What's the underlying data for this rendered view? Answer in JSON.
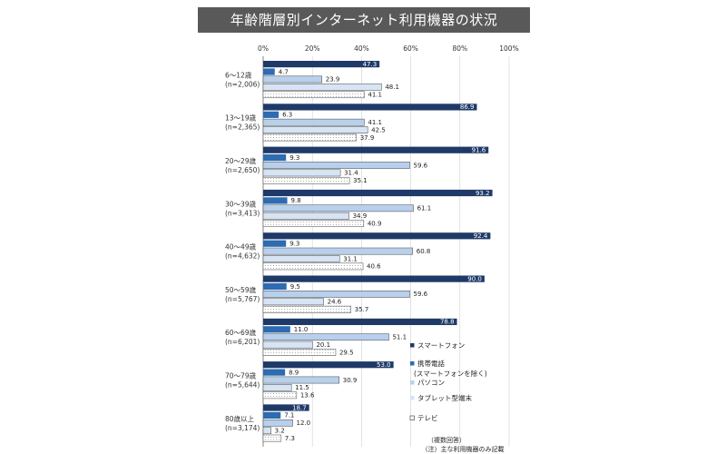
{
  "header": {
    "title": "年齢階層別インターネット利用機器の状況"
  },
  "chart_data": {
    "type": "bar",
    "orientation": "horizontal",
    "title": "年齢階層別インターネット利用機器の状況",
    "xlim": [
      0,
      100
    ],
    "x_ticks": [
      "0%",
      "20%",
      "40%",
      "60%",
      "80%",
      "100%"
    ],
    "grid": true,
    "legend_position": "right",
    "categories": [
      {
        "label": "6～12歳",
        "n": "(n=2,006)"
      },
      {
        "label": "13～19歳",
        "n": "(n=2,365)"
      },
      {
        "label": "20～29歳",
        "n": "(n=2,650)"
      },
      {
        "label": "30～39歳",
        "n": "(n=3,413)"
      },
      {
        "label": "40～49歳",
        "n": "(n=4,632)"
      },
      {
        "label": "50～59歳",
        "n": "(n=5,767)"
      },
      {
        "label": "60～69歳",
        "n": "(n=6,201)"
      },
      {
        "label": "70～79歳",
        "n": "(n=5,644)"
      },
      {
        "label": "80歳以上",
        "n": "(n=3,174)"
      }
    ],
    "series": [
      {
        "name": "スマートフォン",
        "color": "#1f3a68",
        "values": [
          47.3,
          86.9,
          91.6,
          93.2,
          92.4,
          90.0,
          78.8,
          53.0,
          18.7
        ]
      },
      {
        "name": "携帯電話\n(スマートフォンを除く)",
        "color": "#2e6bb0",
        "values": [
          4.7,
          6.3,
          9.3,
          9.8,
          9.3,
          9.5,
          11.0,
          8.9,
          7.1
        ]
      },
      {
        "name": "パソコン",
        "color": "#b8d0ec",
        "values": [
          23.9,
          41.1,
          59.6,
          61.1,
          60.8,
          59.6,
          51.1,
          30.9,
          12.0
        ]
      },
      {
        "name": "タブレット型端末",
        "color": "#d6e4f4",
        "values": [
          48.1,
          42.5,
          31.4,
          34.9,
          31.1,
          24.6,
          20.1,
          11.5,
          3.2
        ]
      },
      {
        "name": "テレビ",
        "color": "#ffffff",
        "values": [
          41.1,
          37.9,
          35.1,
          40.9,
          40.6,
          35.7,
          29.5,
          13.6,
          7.3
        ]
      }
    ],
    "value_labels": [
      [
        "47.3",
        "86.9",
        "91.6",
        "93.2",
        "92.4",
        "90.0",
        "78.8",
        "53.0",
        "18.7"
      ],
      [
        "4.7",
        "6.3",
        "9.3",
        "9.8",
        "9.3",
        "9.5",
        "11.0",
        "8.9",
        "7.1"
      ],
      [
        "23.9",
        "41.1",
        "59.6",
        "61.1",
        "60.8",
        "59.6",
        "51.1",
        "30.9",
        "12.0"
      ],
      [
        "48.1",
        "42.5",
        "31.4",
        "34.9",
        "31.1",
        "24.6",
        "20.1",
        "11.5",
        "3.2"
      ],
      [
        "41.1",
        "37.9",
        "35.1",
        "40.9",
        "40.6",
        "35.7",
        "29.5",
        "13.6",
        "7.3"
      ]
    ],
    "notes": [
      "（複数回答）",
      "（注）主な利用機器のみ記載"
    ]
  }
}
